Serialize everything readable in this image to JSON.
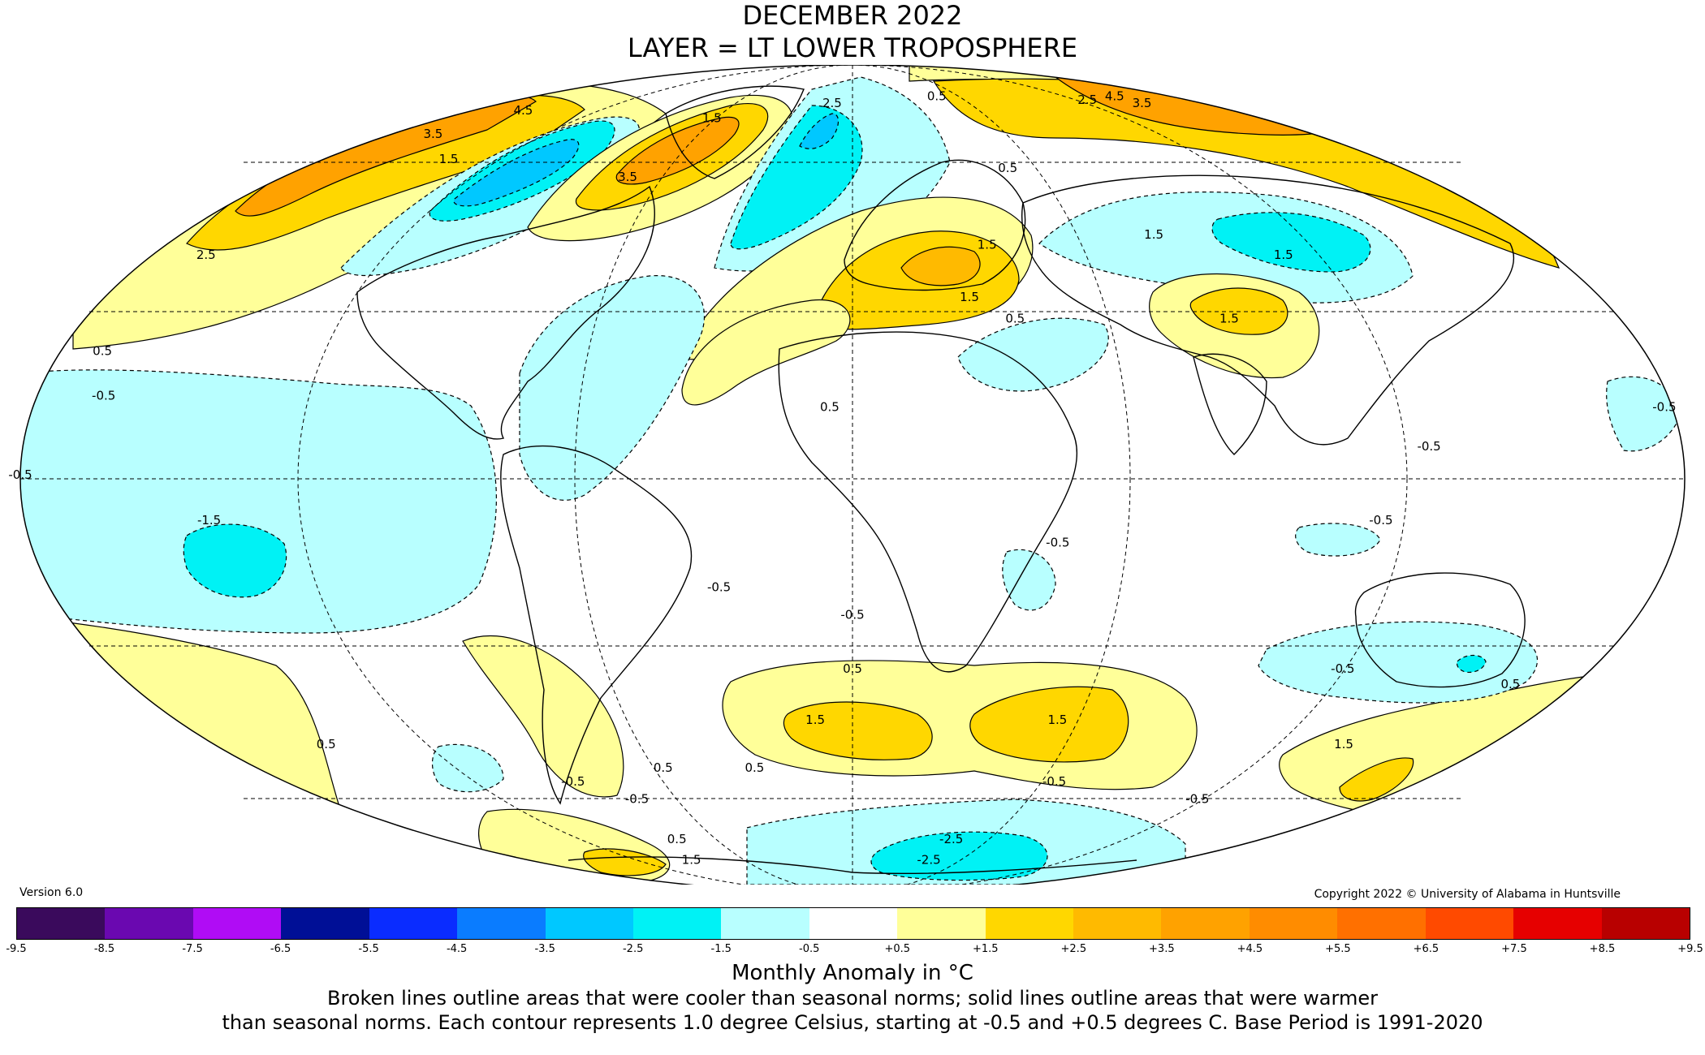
{
  "header": {
    "title": "DECEMBER 2022",
    "subtitle": "LAYER = LT LOWER TROPOSPHERE"
  },
  "footer": {
    "version": "Version 6.0",
    "copyright": "Copyright 2022 © University of Alabama in Huntsville",
    "unit": "Monthly Anomaly in °C",
    "note_line1": "Broken lines outline areas that were cooler than seasonal norms; solid lines outline areas that were warmer",
    "note_line2": "than seasonal norms. Each contour represents 1.0 degree Celsius, starting at -0.5 and +0.5 degrees C. Base Period is 1991-2020"
  },
  "legend": {
    "ticks": [
      "-9.5",
      "-8.5",
      "-7.5",
      "-6.5",
      "-5.5",
      "-4.5",
      "-3.5",
      "-2.5",
      "-1.5",
      "-0.5",
      "+0.5",
      "+1.5",
      "+2.5",
      "+3.5",
      "+4.5",
      "+5.5",
      "+6.5",
      "+7.5",
      "+8.5",
      "+9.5"
    ],
    "colors": [
      "#3a0a5c",
      "#6a08b0",
      "#b00cf5",
      "#000f96",
      "#0a2cff",
      "#0a7cff",
      "#00c8ff",
      "#00f2f5",
      "#b8ffff",
      "#ffffff",
      "#ffff99",
      "#ffd700",
      "#ffba00",
      "#ffa200",
      "#ff8c00",
      "#ff7000",
      "#ff4a00",
      "#e60000",
      "#b80000"
    ]
  },
  "map": {
    "projection": "Mollweide",
    "contour_labels": [
      {
        "text": "4.5",
        "lon": -150,
        "lat": 72
      },
      {
        "text": "3.5",
        "lon": -160,
        "lat": 66
      },
      {
        "text": "2.5",
        "lon": -165,
        "lat": 40
      },
      {
        "text": "1.5",
        "lon": -135,
        "lat": 60
      },
      {
        "text": "1.5",
        "lon": -60,
        "lat": 70
      },
      {
        "text": "3.5",
        "lon": -70,
        "lat": 56
      },
      {
        "text": "2.5",
        "lon": -10,
        "lat": 74
      },
      {
        "text": "0.5",
        "lon": 45,
        "lat": 76
      },
      {
        "text": "0.5",
        "lon": 50,
        "lat": 58
      },
      {
        "text": "2.5",
        "lon": 120,
        "lat": 75
      },
      {
        "text": "4.5",
        "lon": 140,
        "lat": 76
      },
      {
        "text": "3.5",
        "lon": 142,
        "lat": 74
      },
      {
        "text": "1.5",
        "lon": 80,
        "lat": 44
      },
      {
        "text": "1.5",
        "lon": 110,
        "lat": 40
      },
      {
        "text": "1.5",
        "lon": 88,
        "lat": 28
      },
      {
        "text": "1.5",
        "lon": 35,
        "lat": 42
      },
      {
        "text": "1.5",
        "lon": 28,
        "lat": 32
      },
      {
        "text": "0.5",
        "lon": 38,
        "lat": 28
      },
      {
        "text": "0.5",
        "lon": -5,
        "lat": 12
      },
      {
        "text": "0.5",
        "lon": -170,
        "lat": 22
      },
      {
        "text": "-0.5",
        "lon": -165,
        "lat": 14
      },
      {
        "text": "-0.5",
        "lon": -180,
        "lat": 0
      },
      {
        "text": "-1.5",
        "lon": -140,
        "lat": -8
      },
      {
        "text": "-0.5",
        "lon": -30,
        "lat": -20
      },
      {
        "text": "-0.5",
        "lon": 0,
        "lat": -25
      },
      {
        "text": "-0.5",
        "lon": 45,
        "lat": -12
      },
      {
        "text": "-0.5",
        "lon": 125,
        "lat": 5
      },
      {
        "text": "-0.5",
        "lon": 115,
        "lat": -8
      },
      {
        "text": "-0.5",
        "lon": 178,
        "lat": 12
      },
      {
        "text": "0.5",
        "lon": 0,
        "lat": -35
      },
      {
        "text": "1.5",
        "lon": -10,
        "lat": -45
      },
      {
        "text": "1.5",
        "lon": 55,
        "lat": -45
      },
      {
        "text": "0.5",
        "lon": -150,
        "lat": -50
      },
      {
        "text": "-0.5",
        "lon": -90,
        "lat": -58
      },
      {
        "text": "-0.5",
        "lon": -75,
        "lat": -62
      },
      {
        "text": "0.5",
        "lon": -58,
        "lat": -55
      },
      {
        "text": "0.5",
        "lon": -30,
        "lat": -55
      },
      {
        "text": "-0.5",
        "lon": 120,
        "lat": -35
      },
      {
        "text": "0.5",
        "lon": 165,
        "lat": -38
      },
      {
        "text": "1.5",
        "lon": 140,
        "lat": -50
      },
      {
        "text": "-0.5",
        "lon": 65,
        "lat": -58
      },
      {
        "text": "-0.5",
        "lon": 120,
        "lat": -62
      },
      {
        "text": "-2.5",
        "lon": 45,
        "lat": -72
      },
      {
        "text": "-2.5",
        "lon": 45,
        "lat": -78
      },
      {
        "text": "0.5",
        "lon": -80,
        "lat": -72
      },
      {
        "text": "1.5",
        "lon": -95,
        "lat": -78
      }
    ]
  }
}
